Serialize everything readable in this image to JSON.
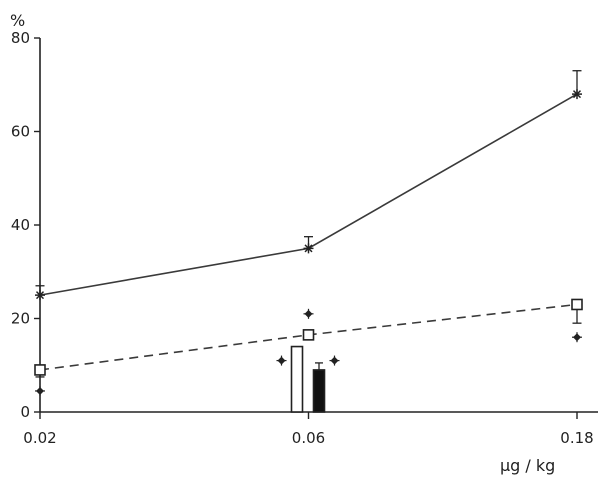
{
  "chart_data": {
    "type": "line",
    "title": "",
    "ylabel": "%",
    "xlabel": "µg / kg",
    "x_scale": "log",
    "x": [
      0.02,
      0.06,
      0.18
    ],
    "x_tick_labels": [
      "0.02",
      "0.06",
      "0.18"
    ],
    "xlim": [
      0.02,
      0.18
    ],
    "ylim": [
      0,
      80
    ],
    "y_ticks": [
      0,
      20,
      40,
      60,
      80
    ],
    "y_tick_labels": [
      "0",
      "20",
      "40",
      "60",
      "80"
    ],
    "grid": false,
    "series": [
      {
        "marker": "asterisk",
        "line_style": "solid",
        "values": [
          25,
          35,
          68
        ],
        "error_upper": [
          27,
          37.5,
          73
        ]
      },
      {
        "marker": "open-square",
        "line_style": "dashed",
        "values": [
          9,
          16.5,
          23
        ],
        "error_lower": [
          7.5,
          null,
          19
        ]
      }
    ],
    "bars": [
      {
        "x": 0.06,
        "value": 14,
        "fill": "white"
      },
      {
        "x": 0.06,
        "value": 9,
        "fill": "black",
        "error_upper": 10.5
      }
    ],
    "significance_markers": [
      {
        "x": 0.02,
        "y": 4.5
      },
      {
        "x": 0.06,
        "y": 21
      },
      {
        "x": 0.06,
        "y": 11,
        "beside": "left"
      },
      {
        "x": 0.06,
        "y": 11,
        "beside": "right"
      },
      {
        "x": 0.18,
        "y": 16
      }
    ]
  },
  "colors": {
    "line": "#3a3a3a",
    "axis": "#222222",
    "bar_filled": "#111111",
    "background": "#ffffff"
  }
}
